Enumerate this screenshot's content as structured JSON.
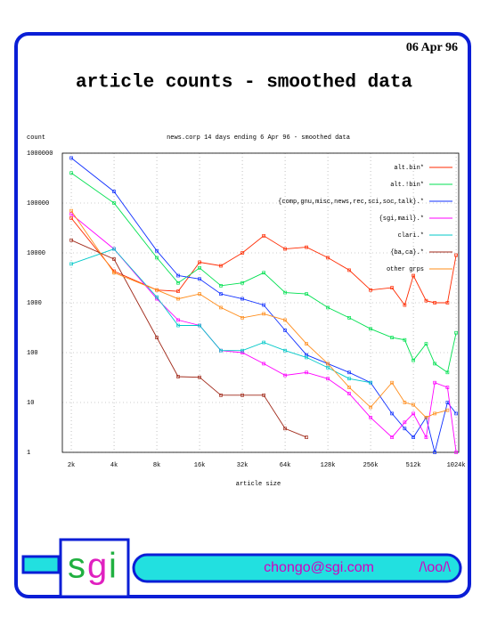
{
  "date": "06 Apr 96",
  "title": "article counts - smoothed data",
  "chart_data": {
    "type": "line",
    "title": "news.corp 14 days ending 6 Apr 96 - smoothed data",
    "y_label": "count",
    "x_label": "article size",
    "xlog": true,
    "ylog": true,
    "grid": true,
    "legend": "upper right",
    "x": [
      2,
      4,
      8,
      11.3,
      16,
      22.6,
      32,
      45.3,
      64,
      90.5,
      128,
      181,
      256,
      362,
      445,
      512,
      630,
      724,
      890,
      1024
    ],
    "xlim": [
      1.73,
      1068
    ],
    "xticks": [
      {
        "value": 2,
        "label": "2k"
      },
      {
        "value": 4,
        "label": "4k"
      },
      {
        "value": 8,
        "label": "8k"
      },
      {
        "value": 16,
        "label": "16k"
      },
      {
        "value": 32,
        "label": "32k"
      },
      {
        "value": 64,
        "label": "64k"
      },
      {
        "value": 128,
        "label": "128k"
      },
      {
        "value": 256,
        "label": "256k"
      },
      {
        "value": 512,
        "label": "512k"
      },
      {
        "value": 1024,
        "label": "1024k"
      }
    ],
    "ylim": [
      1,
      1000000
    ],
    "yticks": [
      1,
      10,
      100,
      1000,
      10000,
      100000,
      1000000
    ],
    "series": [
      {
        "name": "alt.bin*",
        "color": "#ff2a00",
        "values": [
          50000,
          4300,
          1800,
          1700,
          6500,
          5500,
          10000,
          22000,
          12000,
          13000,
          8000,
          4500,
          1800,
          2000,
          900,
          3500,
          1100,
          1000,
          1000,
          9000
        ]
      },
      {
        "name": "alt.!bin*",
        "color": "#00e050",
        "values": [
          400000,
          100000,
          8000,
          2500,
          5000,
          2200,
          2500,
          4000,
          1600,
          1500,
          800,
          500,
          300,
          200,
          180,
          70,
          150,
          60,
          40,
          250
        ]
      },
      {
        "name": "{comp,gnu,misc,news,rec,sci,soc,talk}.*",
        "color": "#1030ff",
        "values": [
          800000,
          170000,
          11000,
          3500,
          3000,
          1500,
          1200,
          900,
          280,
          90,
          60,
          40,
          25,
          6,
          3,
          2,
          5,
          1,
          10,
          6
        ]
      },
      {
        "name": "{sgi,mail}.*",
        "color": "#ff00ff",
        "values": [
          60000,
          12000,
          1200,
          450,
          350,
          110,
          100,
          60,
          35,
          40,
          30,
          15,
          5,
          2,
          4,
          6,
          2,
          25,
          20,
          1
        ]
      },
      {
        "name": "clari.*",
        "color": "#00c8c8",
        "values": [
          6000,
          12000,
          1300,
          350,
          350,
          110,
          110,
          160,
          110,
          80,
          50,
          30,
          25,
          null,
          null,
          null,
          null,
          null,
          null,
          null
        ]
      },
      {
        "name": "{ba,ca}.*",
        "color": "#a02818",
        "values": [
          18000,
          7500,
          200,
          33,
          32,
          14,
          14,
          14,
          3,
          2,
          null,
          null,
          null,
          null,
          null,
          null,
          null,
          null,
          null,
          null
        ]
      },
      {
        "name": "other grps",
        "color": "#ff8c1a",
        "values": [
          70000,
          4000,
          1800,
          1200,
          1500,
          800,
          500,
          600,
          450,
          150,
          60,
          20,
          8,
          25,
          10,
          9,
          5,
          6,
          7,
          null
        ]
      }
    ]
  },
  "footer": {
    "logo": [
      "s",
      "g",
      "i"
    ],
    "email": "chongo@sgi.com",
    "sig": "/\\oo/\\"
  }
}
